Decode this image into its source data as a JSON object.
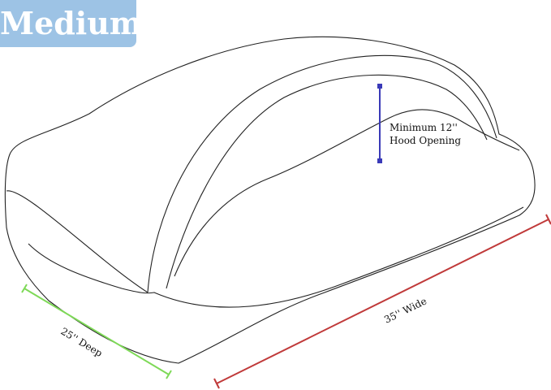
{
  "size_badge": "Medium",
  "dimensions": {
    "hood": "Minimum 12''",
    "hood_line2": "Hood Opening",
    "depth": "25'' Deep",
    "width": "35'' Wide"
  },
  "colors": {
    "badge": "#9dc3e5",
    "hood_line": "#3a3ab8",
    "depth_line": "#7ed957",
    "width_line": "#c03a3a"
  }
}
